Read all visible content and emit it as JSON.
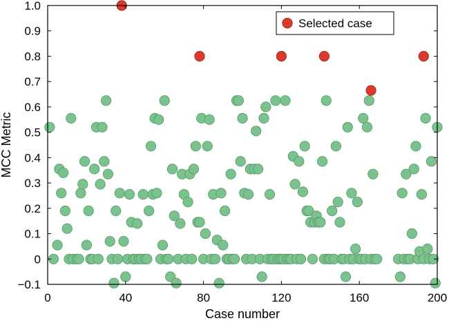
{
  "chart_data": {
    "type": "scatter",
    "xlabel": "Case number",
    "ylabel": "MCC Metric",
    "xlim": [
      0,
      200
    ],
    "ylim": [
      -0.1,
      1.0
    ],
    "xticks": [
      "0",
      "40",
      "80",
      "120",
      "160",
      "200"
    ],
    "yticks": [
      "−0.1",
      "0",
      "0.1",
      "0.2",
      "0.3",
      "0.4",
      "0.5",
      "0.6",
      "0.7",
      "0.8",
      "0.9",
      "1.0"
    ],
    "grid": false,
    "legend": {
      "placement": "top-right",
      "entries": [
        "Selected case"
      ]
    },
    "colors": {
      "normal": "#7cc28f",
      "normal_edge": "#4f9a66",
      "selected": "#d93a2b",
      "selected_edge": "#9c2218"
    },
    "series": [
      {
        "role": "normal",
        "points": [
          [
            1,
            0.52
          ],
          [
            3,
            0
          ],
          [
            5,
            0.055
          ],
          [
            6,
            0.355
          ],
          [
            7,
            0.26
          ],
          [
            8,
            0.34
          ],
          [
            9,
            0.19
          ],
          [
            10,
            0.12
          ],
          [
            11,
            0
          ],
          [
            12,
            0.555
          ],
          [
            13,
            0
          ],
          [
            15,
            0
          ],
          [
            16,
            0
          ],
          [
            17,
            0.26
          ],
          [
            18,
            0.295
          ],
          [
            19,
            0.385
          ],
          [
            20,
            0.055
          ],
          [
            21,
            0.19
          ],
          [
            22,
            0
          ],
          [
            23,
            0
          ],
          [
            24,
            0.355
          ],
          [
            25,
            0.52
          ],
          [
            26,
            0
          ],
          [
            27,
            0.295
          ],
          [
            28,
            0.52
          ],
          [
            29,
            0.385
          ],
          [
            30,
            0.625
          ],
          [
            31,
            0.335
          ],
          [
            32,
            0.07
          ],
          [
            33,
            0
          ],
          [
            34,
            -0.095
          ],
          [
            35,
            0.19
          ],
          [
            36,
            0
          ],
          [
            37,
            0.26
          ],
          [
            39,
            0.07
          ],
          [
            40,
            -0.07
          ],
          [
            41,
            0
          ],
          [
            42,
            0.255
          ],
          [
            43,
            0.145
          ],
          [
            44,
            0
          ],
          [
            45,
            0
          ],
          [
            46,
            0.14
          ],
          [
            47,
            0
          ],
          [
            48,
            0
          ],
          [
            49,
            0.255
          ],
          [
            50,
            0
          ],
          [
            51,
            0
          ],
          [
            52,
            0.19
          ],
          [
            53,
            0.445
          ],
          [
            54,
            0.255
          ],
          [
            55,
            0.555
          ],
          [
            56,
            0.26
          ],
          [
            57,
            0.55
          ],
          [
            58,
            0
          ],
          [
            59,
            0.055
          ],
          [
            60,
            0.625
          ],
          [
            61,
            0
          ],
          [
            62,
            0
          ],
          [
            63,
            -0.07
          ],
          [
            64,
            0.355
          ],
          [
            65,
            0.17
          ],
          [
            66,
            -0.095
          ],
          [
            67,
            0
          ],
          [
            68,
            0.14
          ],
          [
            69,
            0.335
          ],
          [
            70,
            0.255
          ],
          [
            71,
            0
          ],
          [
            72,
            0.225
          ],
          [
            73,
            0.335
          ],
          [
            74,
            0
          ],
          [
            75,
            0.355
          ],
          [
            76,
            0.445
          ],
          [
            77,
            0.145
          ],
          [
            78,
            0.145
          ],
          [
            79,
            0.555
          ],
          [
            80,
            0
          ],
          [
            81,
            0.1
          ],
          [
            82,
            0.445
          ],
          [
            83,
            0.55
          ],
          [
            84,
            0
          ],
          [
            85,
            0.255
          ],
          [
            86,
            0
          ],
          [
            87,
            0.075
          ],
          [
            88,
            -0.095
          ],
          [
            89,
            0.26
          ],
          [
            90,
            0.055
          ],
          [
            91,
            0.19
          ],
          [
            92,
            0
          ],
          [
            93,
            0
          ],
          [
            94,
            0.335
          ],
          [
            95,
            0
          ],
          [
            96,
            0
          ],
          [
            97,
            0.625
          ],
          [
            98,
            0.625
          ],
          [
            99,
            0.385
          ],
          [
            100,
            0.555
          ],
          [
            101,
            0.26
          ],
          [
            102,
            0
          ],
          [
            103,
            0.255
          ],
          [
            104,
            0.355
          ],
          [
            105,
            0
          ],
          [
            106,
            0.355
          ],
          [
            107,
            0.505
          ],
          [
            108,
            0.355
          ],
          [
            109,
            0
          ],
          [
            110,
            -0.07
          ],
          [
            111,
            0.555
          ],
          [
            112,
            0.6
          ],
          [
            113,
            0
          ],
          [
            114,
            0.255
          ],
          [
            115,
            0
          ],
          [
            116,
            0
          ],
          [
            117,
            0.625
          ],
          [
            118,
            0
          ],
          [
            119,
            0
          ],
          [
            120,
            0
          ],
          [
            121,
            0
          ],
          [
            122,
            0.625
          ],
          [
            123,
            0
          ],
          [
            124,
            0
          ],
          [
            125,
            0
          ],
          [
            126,
            0.405
          ],
          [
            127,
            0.295
          ],
          [
            128,
            0
          ],
          [
            129,
            0.385
          ],
          [
            130,
            0
          ],
          [
            131,
            0.265
          ],
          [
            132,
            0.445
          ],
          [
            133,
            0.19
          ],
          [
            134,
            0.19
          ],
          [
            135,
            0.145
          ],
          [
            136,
            0
          ],
          [
            137,
            0.145
          ],
          [
            138,
            0.17
          ],
          [
            139,
            0.145
          ],
          [
            140,
            0.145
          ],
          [
            141,
            0.385
          ],
          [
            142,
            0
          ],
          [
            143,
            0.625
          ],
          [
            144,
            0
          ],
          [
            145,
            0
          ],
          [
            146,
            0.19
          ],
          [
            147,
            0
          ],
          [
            148,
            0.445
          ],
          [
            149,
            0.225
          ],
          [
            150,
            0.145
          ],
          [
            151,
            0
          ],
          [
            152,
            0
          ],
          [
            153,
            -0.07
          ],
          [
            154,
            0.52
          ],
          [
            155,
            0
          ],
          [
            156,
            0.26
          ],
          [
            157,
            0
          ],
          [
            158,
            0.04
          ],
          [
            159,
            0.225
          ],
          [
            160,
            0
          ],
          [
            161,
            0
          ],
          [
            162,
            0.555
          ],
          [
            163,
            0
          ],
          [
            164,
            0.52
          ],
          [
            165,
            0.625
          ],
          [
            166,
            0
          ],
          [
            167,
            0.335
          ],
          [
            168,
            0
          ],
          [
            169,
            0
          ],
          [
            180,
            0
          ],
          [
            181,
            -0.07
          ],
          [
            182,
            0.26
          ],
          [
            183,
            0
          ],
          [
            184,
            0.335
          ],
          [
            185,
            0
          ],
          [
            186,
            0
          ],
          [
            187,
            0.1
          ],
          [
            188,
            0.355
          ],
          [
            189,
            0.445
          ],
          [
            190,
            0
          ],
          [
            191,
            0.03
          ],
          [
            192,
            0.255
          ],
          [
            193,
            0
          ],
          [
            194,
            0.555
          ],
          [
            195,
            0.04
          ],
          [
            196,
            0
          ],
          [
            197,
            0.385
          ],
          [
            198,
            0
          ],
          [
            199,
            -0.095
          ],
          [
            200,
            0.52
          ]
        ]
      },
      {
        "role": "selected",
        "name": "Selected case",
        "points": [
          [
            38,
            1.0
          ],
          [
            78,
            0.8
          ],
          [
            120,
            0.8
          ],
          [
            142,
            0.8
          ],
          [
            166,
            0.665
          ],
          [
            193,
            0.8
          ]
        ]
      }
    ]
  }
}
